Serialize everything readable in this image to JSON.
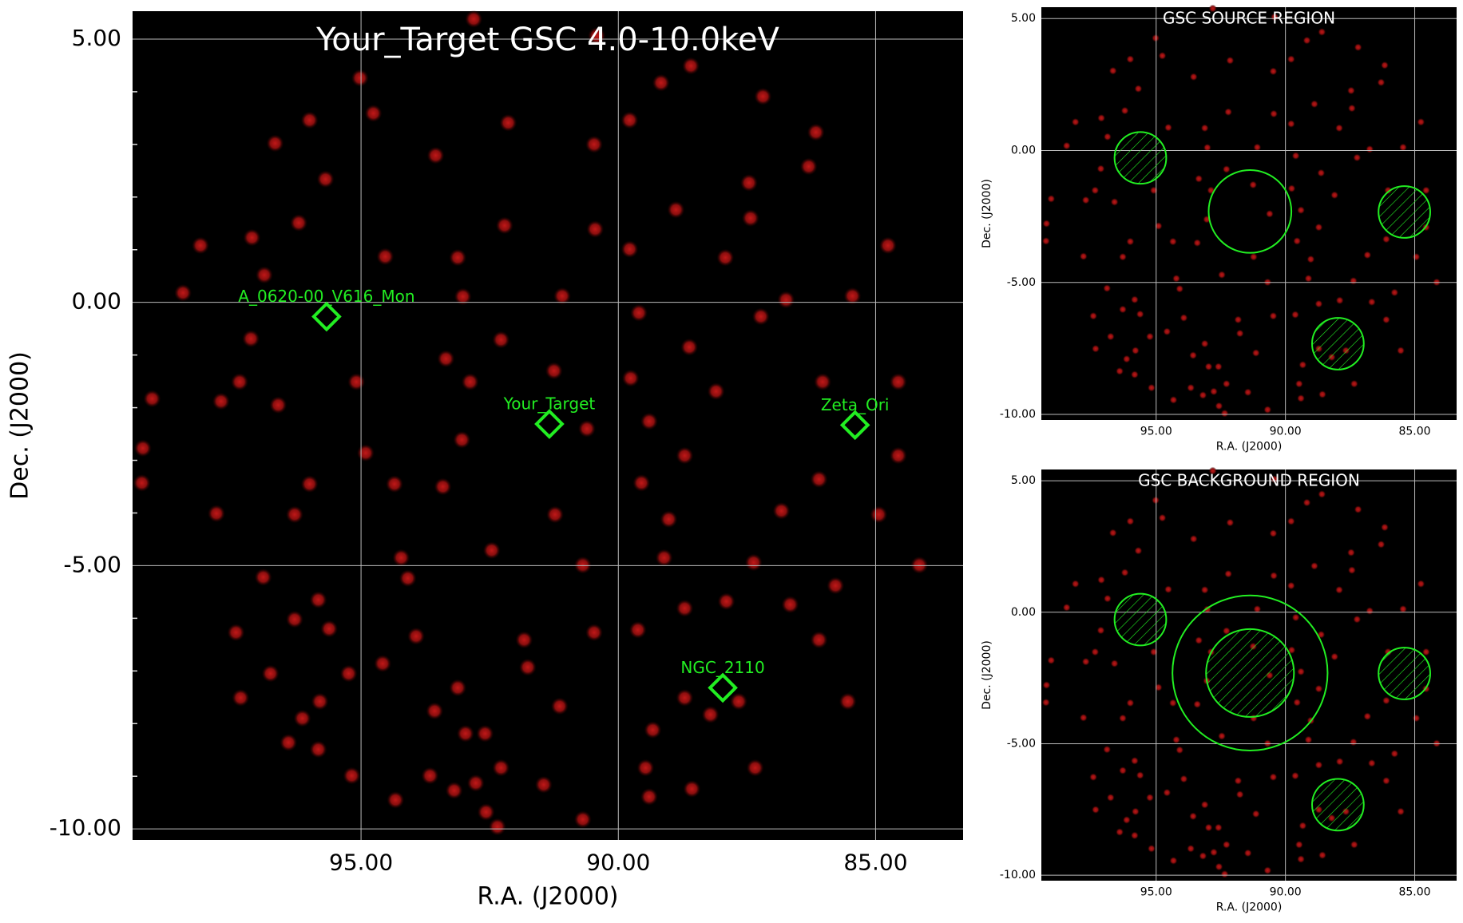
{
  "chart_data": [
    {
      "type": "scatter",
      "title": "Your_Target GSC 4.0-10.0keV",
      "xlabel": "R.A. (J2000)",
      "ylabel": "Dec. (J2000)",
      "xlim": [
        99.44,
        83.3
      ],
      "ylim": [
        -10.21,
        5.53
      ],
      "xticks": [
        {
          "value": 95,
          "label": "95.00"
        },
        {
          "value": 90,
          "label": "90.00"
        },
        {
          "value": 85,
          "label": "85.00"
        }
      ],
      "yticks": [
        {
          "value": 5,
          "label": "5.00"
        },
        {
          "value": 0,
          "label": "0.00"
        },
        {
          "value": -5,
          "label": "-5.00"
        },
        {
          "value": -10,
          "label": "-10.00"
        }
      ],
      "yminorticks": [
        4,
        3,
        2,
        1,
        -1,
        -2,
        -3,
        -4,
        -6,
        -7,
        -8,
        -9
      ],
      "grid": true,
      "field_color": "#a01010",
      "source_color": "#22ee22",
      "sources": {
        "names": [
          "A_0620-00_V616_Mon",
          "Your_Target",
          "Zeta_Ori",
          "NGC_2110"
        ],
        "x": [
          95.67,
          91.34,
          85.4,
          87.97
        ],
        "y": [
          -0.27,
          -2.31,
          -2.33,
          -7.32
        ]
      },
      "field": {
        "x": [
          92.81,
          90.42,
          88.59,
          95.02,
          89.17,
          94.76,
          87.19,
          96.0,
          92.14,
          89.78,
          96.67,
          90.47,
          86.16,
          95.69,
          86.3,
          87.46,
          93.55,
          88.88,
          96.21,
          92.21,
          90.45,
          87.43,
          98.12,
          97.12,
          94.53,
          93.12,
          89.78,
          87.92,
          84.76,
          98.46,
          96.88,
          93.02,
          91.09,
          86.74,
          85.45,
          89.6,
          87.23,
          97.14,
          92.28,
          88.62,
          93.35,
          91.25,
          99.06,
          97.72,
          96.61,
          97.36,
          95.09,
          92.88,
          89.76,
          88.1,
          86.03,
          84.56,
          90.61,
          89.4,
          93.04,
          99.24,
          94.91,
          88.71,
          84.56,
          99.26,
          96.0,
          94.35,
          93.41,
          89.55,
          86.1,
          96.29,
          97.81,
          91.23,
          89.02,
          86.83,
          84.94,
          92.46,
          94.22,
          90.69,
          89.11,
          87.37,
          84.15,
          96.9,
          94.09,
          85.78,
          95.83,
          88.71,
          87.9,
          86.66,
          95.62,
          96.29,
          93.93,
          90.47,
          89.62,
          97.43,
          91.83,
          86.1,
          94.58,
          91.76,
          96.76,
          95.24,
          93.12,
          91.14,
          88.71,
          88.21,
          87.66,
          97.34,
          95.8,
          93.57,
          96.14,
          89.33,
          96.41,
          95.83,
          92.97,
          92.59,
          92.28,
          87.34,
          89.47,
          95.18,
          93.66,
          93.19,
          92.77,
          91.45,
          88.57,
          94.33,
          89.4,
          92.57,
          90.69,
          92.35,
          85.54
        ],
        "y": [
          5.38,
          5.06,
          4.49,
          4.26,
          4.17,
          3.59,
          3.91,
          3.46,
          3.41,
          3.46,
          3.02,
          3.0,
          3.23,
          2.34,
          2.58,
          2.27,
          2.79,
          1.76,
          1.51,
          1.46,
          1.39,
          1.6,
          1.08,
          1.23,
          0.87,
          0.85,
          1.01,
          0.85,
          1.08,
          0.18,
          0.52,
          0.11,
          0.12,
          0.05,
          0.12,
          -0.2,
          -0.27,
          -0.69,
          -0.71,
          -0.85,
          -1.07,
          -1.3,
          -1.83,
          -1.88,
          -1.95,
          -1.51,
          -1.51,
          -1.51,
          -1.44,
          -1.69,
          -1.51,
          -1.51,
          -2.4,
          -2.26,
          -2.61,
          -2.77,
          -2.86,
          -2.91,
          -2.91,
          -3.43,
          -3.45,
          -3.45,
          -3.5,
          -3.43,
          -3.36,
          -4.03,
          -4.01,
          -4.03,
          -4.12,
          -3.96,
          -4.03,
          -4.71,
          -4.85,
          -4.99,
          -4.85,
          -4.94,
          -4.99,
          -5.22,
          -5.24,
          -5.38,
          -5.65,
          -5.81,
          -5.68,
          -5.74,
          -6.2,
          -6.02,
          -6.34,
          -6.27,
          -6.22,
          -6.27,
          -6.41,
          -6.41,
          -6.86,
          -6.93,
          -7.05,
          -7.05,
          -7.32,
          -7.67,
          -7.51,
          -7.83,
          -7.58,
          -7.51,
          -7.58,
          -7.76,
          -7.9,
          -8.12,
          -8.36,
          -8.49,
          -8.19,
          -8.19,
          -8.84,
          -8.84,
          -8.84,
          -8.99,
          -8.99,
          -9.27,
          -9.13,
          -9.16,
          -9.24,
          -9.45,
          -9.39,
          -9.68,
          -9.82,
          -9.96,
          -7.58
        ]
      }
    },
    {
      "type": "region",
      "title": "GSC SOURCE REGION",
      "xlabel": "R.A. (J2000)",
      "ylabel": "Dec. (J2000)",
      "xlim": [
        99.44,
        83.38
      ],
      "ylim": [
        -10.21,
        5.43
      ],
      "xticks": [
        {
          "value": 95,
          "label": "95.00"
        },
        {
          "value": 90,
          "label": "90.00"
        },
        {
          "value": 85,
          "label": "85.00"
        }
      ],
      "yticks": [
        {
          "value": 5,
          "label": "5.00"
        },
        {
          "value": 0,
          "label": "0.00"
        },
        {
          "value": -5,
          "label": "-5.00"
        },
        {
          "value": -10,
          "label": "-10.00"
        }
      ],
      "grid": true,
      "region_color": "#22ee22",
      "regions": [
        {
          "x": 91.37,
          "y": -2.31,
          "r": 1.6,
          "hatched": false
        },
        {
          "x": 95.61,
          "y": -0.28,
          "r": 1.0,
          "hatched": true
        },
        {
          "x": 85.4,
          "y": -2.33,
          "r": 1.0,
          "hatched": true
        },
        {
          "x": 87.97,
          "y": -7.32,
          "r": 1.0,
          "hatched": true
        }
      ]
    },
    {
      "type": "region",
      "title": "GSC BACKGROUND REGION",
      "xlabel": "R.A. (J2000)",
      "ylabel": "Dec. (J2000)",
      "xlim": [
        99.44,
        83.38
      ],
      "ylim": [
        -10.21,
        5.43
      ],
      "xticks": [
        {
          "value": 95,
          "label": "95.00"
        },
        {
          "value": 90,
          "label": "90.00"
        },
        {
          "value": 85,
          "label": "85.00"
        }
      ],
      "yticks": [
        {
          "value": 5,
          "label": "5.00"
        },
        {
          "value": 0,
          "label": "0.00"
        },
        {
          "value": -5,
          "label": "-5.00"
        },
        {
          "value": -10,
          "label": "-10.00"
        }
      ],
      "grid": true,
      "region_color": "#22ee22",
      "regions": [
        {
          "x": 91.37,
          "y": -2.31,
          "r": 3.0,
          "hatched": false
        },
        {
          "x": 91.37,
          "y": -2.31,
          "r": 1.7,
          "hatched": true
        },
        {
          "x": 95.61,
          "y": -0.28,
          "r": 1.0,
          "hatched": true
        },
        {
          "x": 85.4,
          "y": -2.33,
          "r": 1.0,
          "hatched": true
        },
        {
          "x": 87.97,
          "y": -7.32,
          "r": 1.0,
          "hatched": true
        }
      ]
    }
  ]
}
